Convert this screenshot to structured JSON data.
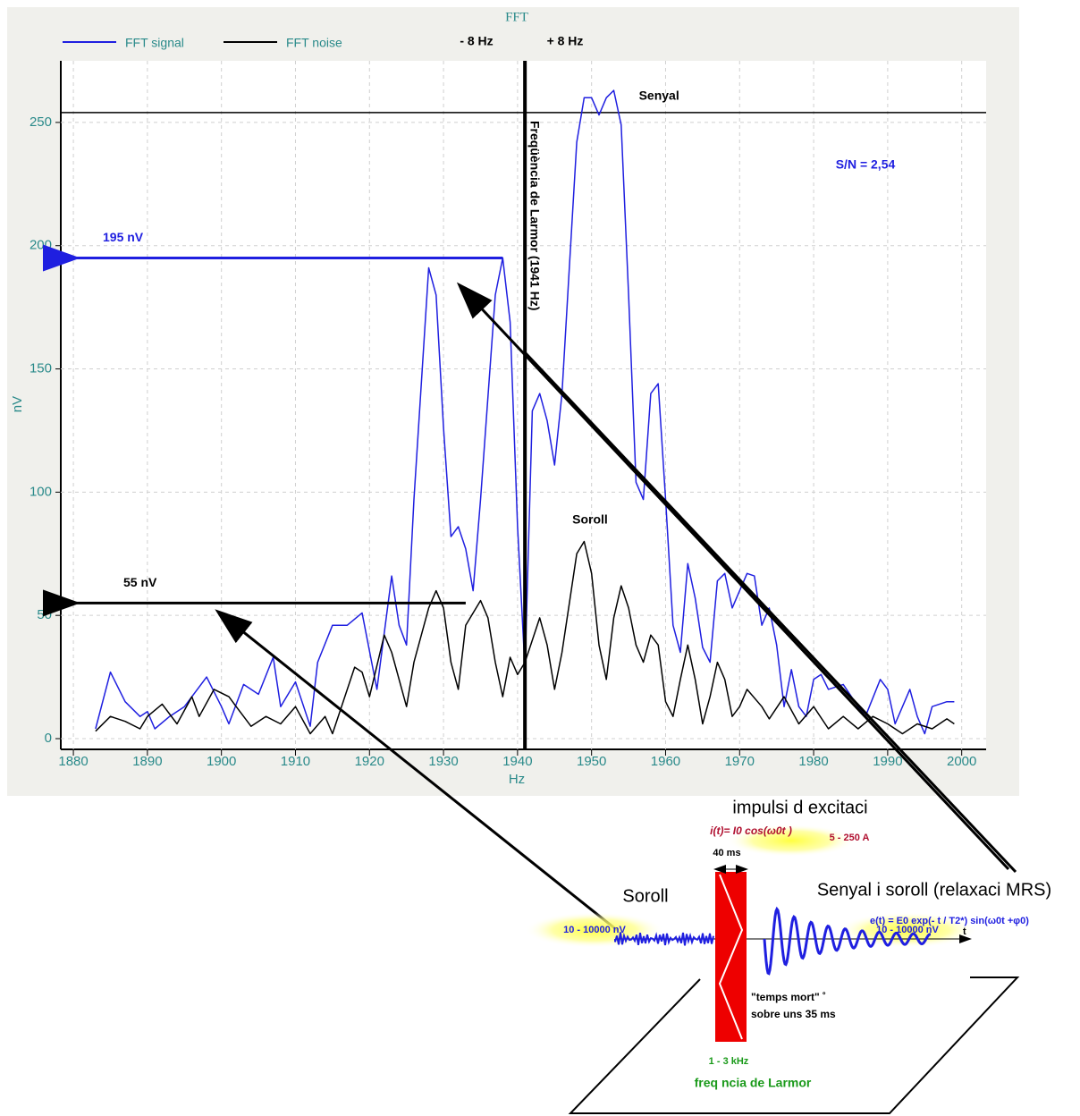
{
  "chart_data": {
    "type": "line",
    "title": "FFT",
    "x_label": "Hz",
    "y_label": "nV",
    "xlim": [
      1878.3,
      2003.3
    ],
    "ylim": [
      0,
      275
    ],
    "xticks": [
      1880,
      1890,
      1900,
      1910,
      1920,
      1930,
      1940,
      1950,
      1960,
      1970,
      1980,
      1990,
      2000
    ],
    "yticks": [
      0,
      50,
      100,
      150,
      200,
      250
    ],
    "grid": true,
    "legend": "top-left",
    "series": [
      {
        "name": "FFT signal",
        "color": "#1f1fe0",
        "x": [
          1883,
          1885,
          1887,
          1889,
          1890,
          1891,
          1893,
          1895,
          1898,
          1900,
          1901,
          1903,
          1905,
          1907,
          1908,
          1910,
          1912,
          1913,
          1915,
          1917,
          1919,
          1921,
          1923,
          1924,
          1925,
          1926,
          1928,
          1929,
          1930,
          1931,
          1932,
          1933,
          1934,
          1935,
          1937,
          1938,
          1939,
          1940,
          1941,
          1942,
          1943,
          1944,
          1945,
          1946,
          1947,
          1948,
          1949,
          1950,
          1951,
          1952,
          1953,
          1954,
          1955,
          1956,
          1957,
          1958,
          1959,
          1960,
          1961,
          1962,
          1963,
          1964,
          1965,
          1966,
          1967,
          1968,
          1969,
          1970,
          1971,
          1972,
          1973,
          1974,
          1975,
          1976,
          1977,
          1978,
          1979,
          1980,
          1981,
          1982,
          1984,
          1986,
          1987,
          1989,
          1990,
          1991,
          1993,
          1994,
          1995,
          1996,
          1998,
          1999
        ],
        "values": [
          4,
          27,
          15,
          9,
          11,
          4,
          9,
          13,
          25,
          13,
          6,
          22,
          18,
          33,
          13,
          23,
          5,
          31,
          46,
          46,
          51,
          20,
          66,
          46,
          38,
          97,
          191,
          180,
          126,
          82,
          86,
          77,
          60,
          97,
          180,
          195,
          169,
          86,
          28,
          133,
          140,
          129,
          111,
          140,
          191,
          242,
          260,
          260,
          253,
          260,
          263,
          249,
          180,
          104,
          97,
          140,
          144,
          97,
          46,
          35,
          71,
          57,
          37,
          31,
          64,
          67,
          53,
          60,
          67,
          66,
          46,
          53,
          38,
          13,
          28,
          13,
          9,
          24,
          26,
          20,
          22,
          13,
          9,
          24,
          20,
          6,
          20,
          9,
          2,
          13,
          15,
          15
        ]
      },
      {
        "name": "FFT noise",
        "color": "#000000",
        "x": [
          1883,
          1885,
          1887,
          1889,
          1890,
          1892,
          1894,
          1896,
          1897,
          1899,
          1901,
          1902,
          1904,
          1906,
          1908,
          1910,
          1912,
          1914,
          1915,
          1918,
          1919,
          1920,
          1922,
          1923,
          1925,
          1926,
          1928,
          1929,
          1930,
          1931,
          1932,
          1933,
          1935,
          1936,
          1937,
          1938,
          1939,
          1940,
          1941,
          1943,
          1944,
          1945,
          1946,
          1948,
          1949,
          1950,
          1951,
          1952,
          1953,
          1954,
          1955,
          1956,
          1957,
          1958,
          1959,
          1960,
          1961,
          1962,
          1963,
          1964,
          1965,
          1966,
          1967,
          1968,
          1969,
          1970,
          1971,
          1973,
          1974,
          1976,
          1978,
          1980,
          1982,
          1984,
          1986,
          1988,
          1990,
          1992,
          1994,
          1996,
          1998,
          1999
        ],
        "values": [
          3,
          9,
          7,
          4,
          9,
          14,
          6,
          17,
          9,
          20,
          17,
          13,
          5,
          9,
          6,
          13,
          2,
          9,
          2,
          29,
          27,
          17,
          42,
          35,
          13,
          31,
          53,
          60,
          53,
          31,
          20,
          46,
          56,
          49,
          31,
          17,
          33,
          26,
          31,
          49,
          38,
          20,
          35,
          75,
          80,
          67,
          38,
          24,
          49,
          62,
          53,
          38,
          31,
          42,
          38,
          15,
          9,
          24,
          38,
          24,
          6,
          17,
          31,
          24,
          9,
          13,
          20,
          13,
          8,
          17,
          6,
          13,
          4,
          9,
          4,
          9,
          6,
          2,
          6,
          4,
          8,
          6
        ]
      }
    ],
    "larmor": {
      "x": 1941,
      "label": "Freqüència de Larmor (1941 Hz)"
    },
    "reference_line": {
      "y": 254,
      "label": "Senyal"
    },
    "arrows": [
      {
        "y": 195,
        "from_x": 1938,
        "label": "195 nV",
        "color": "#1f1fe0"
      },
      {
        "y": 55,
        "from_x": 1933,
        "label": "55 nV",
        "color": "#000000"
      }
    ],
    "labels": [
      "- 8 Hz",
      "+ 8 Hz",
      "Soroll",
      "S/N = 2,54"
    ]
  },
  "diagram": {
    "pulse_title": "impulsi   d   excitaci",
    "pulse_formula": "i(t)= I0 cos(ω0t )",
    "current": "5 - 250 A",
    "duration": "40 ms",
    "signal_title": "Senyal i soroll (relaxaci    MRS)",
    "noise_title": "Soroll",
    "signal_formula": "e(t) = E0 exp(- t / T2*) sin(ω0t +φ0)",
    "time_axis": "t",
    "noise_range": "10 - 10000 nV",
    "signal_range": "10 - 10000 nV",
    "dead_time": [
      "\"temps mort\" ˚",
      "sobre uns 35 ms"
    ],
    "frequency": "1 -  3 kHz",
    "larmor": "freq      ncia de Larmor"
  }
}
